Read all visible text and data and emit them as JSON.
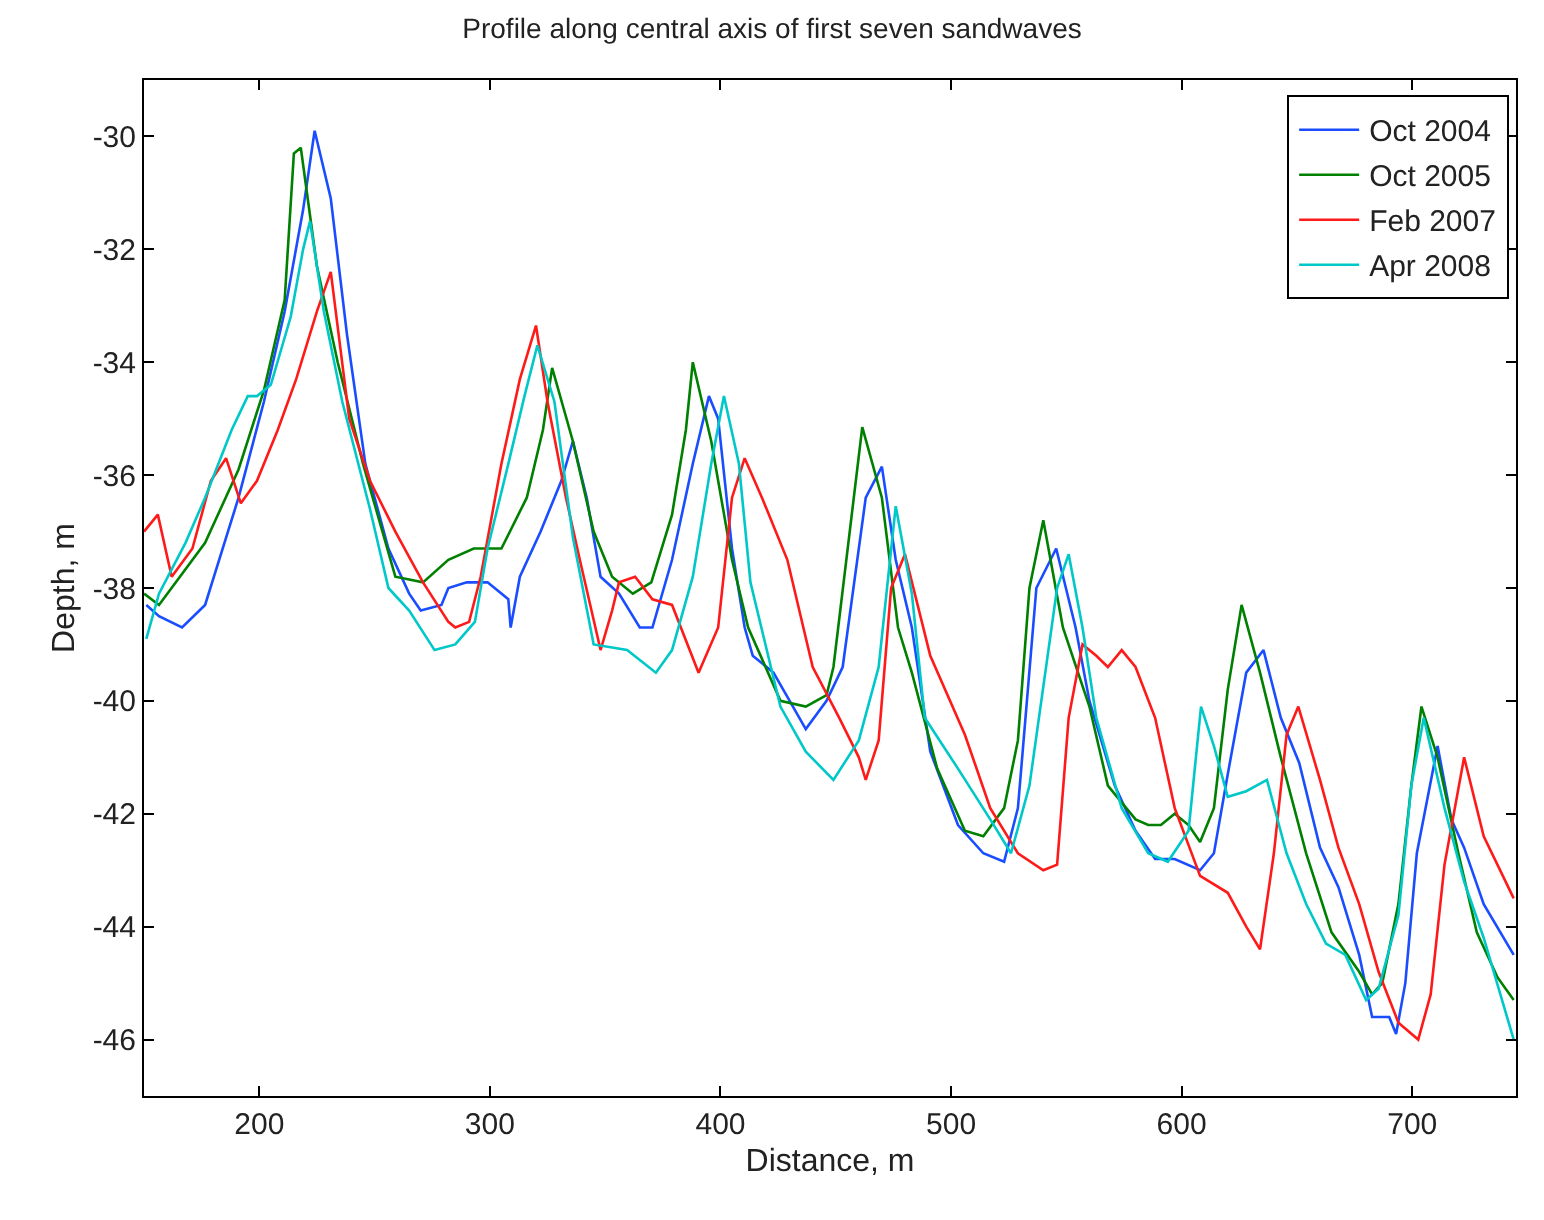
{
  "chart_data": {
    "type": "line",
    "title": "Profile along central axis of first seven sandwaves",
    "xlabel": "Distance, m",
    "ylabel": "Depth, m",
    "xlim": [
      150,
      745
    ],
    "xticks": [
      200,
      300,
      400,
      500,
      600,
      700
    ],
    "ylim": [
      -47,
      -29
    ],
    "yticks": [
      -46,
      -44,
      -42,
      -40,
      -38,
      -36,
      -34,
      -32,
      -30
    ],
    "legend": "top right",
    "marker": "none",
    "line_style": "solid",
    "series": [
      {
        "name": "Oct 2004",
        "color": "#1a4dff",
        "x": [
          151,
          156.5,
          166.5,
          176.5,
          191,
          202,
          211,
          219,
          224,
          231,
          238,
          246,
          256,
          265,
          270,
          279,
          282,
          290,
          299,
          308,
          309,
          313,
          322,
          331,
          336,
          342,
          348,
          356,
          365,
          370.5,
          379,
          388,
          395,
          399,
          405,
          410.5,
          414,
          423,
          437,
          446,
          453,
          463,
          470,
          476,
          483,
          491,
          503,
          514,
          523,
          529,
          537,
          545.6,
          554,
          560,
          571,
          580,
          588.5,
          597,
          608,
          614,
          620,
          628,
          635.5,
          643,
          651,
          660,
          668,
          677,
          682.6,
          690,
          693,
          697,
          702,
          711,
          717,
          722.5,
          731,
          744
        ],
        "values": [
          -38.3,
          -38.5,
          -38.7,
          -38.3,
          -36.4,
          -34.7,
          -33.1,
          -31.3,
          -29.9,
          -31.1,
          -33.5,
          -35.8,
          -37.3,
          -38.1,
          -38.4,
          -38.3,
          -38.0,
          -37.9,
          -37.9,
          -38.2,
          -38.7,
          -37.8,
          -37.0,
          -36.1,
          -35.4,
          -36.4,
          -37.8,
          -38.1,
          -38.7,
          -38.7,
          -37.5,
          -35.8,
          -34.6,
          -35.0,
          -37.3,
          -38.7,
          -39.2,
          -39.5,
          -40.5,
          -40.0,
          -39.4,
          -36.4,
          -35.85,
          -37.5,
          -38.7,
          -40.9,
          -42.2,
          -42.7,
          -42.85,
          -41.9,
          -38.0,
          -37.3,
          -38.7,
          -40.0,
          -41.5,
          -42.3,
          -42.8,
          -42.8,
          -43.0,
          -42.7,
          -41.3,
          -39.5,
          -39.1,
          -40.3,
          -41.1,
          -42.6,
          -43.3,
          -44.5,
          -45.6,
          -45.6,
          -45.9,
          -45.0,
          -42.7,
          -40.8,
          -42.1,
          -42.6,
          -43.6,
          -44.5
        ]
      },
      {
        "name": "Oct 2005",
        "color": "#008000",
        "x": [
          150,
          156.5,
          176.5,
          191,
          202,
          211,
          215,
          218,
          225,
          234,
          245,
          259,
          271,
          282,
          293,
          305,
          316,
          323,
          327,
          336,
          345,
          353,
          362,
          370,
          379,
          385,
          388,
          396,
          405,
          412,
          426,
          437,
          446,
          449,
          461.5,
          470,
          477,
          483,
          494,
          506,
          514,
          523,
          529,
          534,
          540,
          548.5,
          560,
          568,
          580,
          585.5,
          591,
          597,
          603,
          608,
          614,
          620,
          626,
          634,
          643,
          654,
          665,
          677,
          682.6,
          687,
          694,
          699.6,
          704,
          711,
          720,
          728,
          737,
          744
        ],
        "values": [
          -38.1,
          -38.3,
          -37.2,
          -35.9,
          -34.5,
          -32.9,
          -30.3,
          -30.2,
          -32.3,
          -34.0,
          -35.8,
          -37.8,
          -37.9,
          -37.5,
          -37.3,
          -37.3,
          -36.4,
          -35.2,
          -34.1,
          -35.4,
          -37.0,
          -37.8,
          -38.1,
          -37.9,
          -36.7,
          -35.2,
          -34.0,
          -35.4,
          -37.5,
          -38.7,
          -40.0,
          -40.1,
          -39.9,
          -39.4,
          -35.15,
          -36.4,
          -38.7,
          -39.5,
          -41.2,
          -42.3,
          -42.4,
          -41.9,
          -40.7,
          -38.0,
          -36.8,
          -38.7,
          -40.1,
          -41.5,
          -42.1,
          -42.2,
          -42.2,
          -42.0,
          -42.2,
          -42.5,
          -41.9,
          -39.8,
          -38.3,
          -39.5,
          -41.0,
          -42.7,
          -44.1,
          -44.8,
          -45.2,
          -45.0,
          -43.6,
          -41.5,
          -40.1,
          -41.0,
          -42.7,
          -44.1,
          -44.9,
          -45.3
        ]
      },
      {
        "name": "Feb 2007",
        "color": "#ff1a1a",
        "x": [
          150,
          156,
          162,
          171,
          179,
          185.6,
          192,
          199,
          208,
          216,
          225,
          231,
          239,
          248,
          259,
          271,
          282,
          285,
          291,
          296,
          305,
          313,
          320,
          325,
          333,
          339,
          348,
          353,
          356,
          363,
          370.5,
          379,
          390.5,
          399,
          405,
          410.5,
          418,
          429,
          440,
          451.5,
          460,
          463,
          468.6,
          474,
          480,
          491,
          506,
          517,
          529,
          540,
          546,
          551,
          557,
          563,
          568,
          574,
          580,
          588.5,
          597,
          608,
          620,
          628,
          634,
          640,
          645.5,
          650.6,
          660,
          668,
          677,
          685.4,
          694,
          702.6,
          708,
          714,
          722.5,
          731,
          744
        ],
        "values": [
          -37.0,
          -36.7,
          -37.8,
          -37.3,
          -36.1,
          -35.7,
          -36.5,
          -36.1,
          -35.2,
          -34.3,
          -33.1,
          -32.4,
          -35.0,
          -36.1,
          -37.0,
          -37.9,
          -38.6,
          -38.7,
          -38.6,
          -37.8,
          -35.8,
          -34.3,
          -33.35,
          -34.7,
          -36.4,
          -37.5,
          -39.1,
          -38.4,
          -37.9,
          -37.8,
          -38.2,
          -38.3,
          -39.5,
          -38.7,
          -36.4,
          -35.7,
          -36.4,
          -37.5,
          -39.4,
          -40.3,
          -41.0,
          -41.4,
          -40.7,
          -38.0,
          -37.4,
          -39.2,
          -40.6,
          -41.9,
          -42.7,
          -43.0,
          -42.9,
          -40.3,
          -39.0,
          -39.2,
          -39.4,
          -39.1,
          -39.4,
          -40.3,
          -41.9,
          -43.1,
          -43.4,
          -44.0,
          -44.4,
          -42.7,
          -40.6,
          -40.1,
          -41.4,
          -42.6,
          -43.6,
          -44.8,
          -45.7,
          -46.0,
          -45.2,
          -42.9,
          -41.0,
          -42.4,
          -43.5
        ]
      },
      {
        "name": "Apr 2008",
        "color": "#00c8c8",
        "x": [
          151,
          156.5,
          168,
          176.5,
          188,
          195,
          199,
          205,
          213.6,
          219,
          222,
          228,
          236,
          248,
          256,
          265,
          276,
          285,
          293.5,
          299,
          308,
          315,
          320.6,
          328,
          336,
          345,
          359.5,
          372,
          379,
          388,
          396,
          401.5,
          408,
          413,
          426,
          437,
          449,
          460,
          468.6,
          476,
          483,
          488.6,
          503,
          517,
          526,
          534,
          546,
          551,
          557,
          563,
          574,
          585.5,
          594,
          603,
          608.4,
          614,
          620,
          628,
          637,
          645.5,
          654,
          662.6,
          671,
          680,
          685.4,
          694,
          699.6,
          705,
          714,
          722.5,
          731,
          744
        ],
        "values": [
          -38.9,
          -38.1,
          -37.2,
          -36.4,
          -35.2,
          -34.6,
          -34.6,
          -34.4,
          -33.2,
          -32.0,
          -31.5,
          -33.1,
          -34.7,
          -36.6,
          -38.0,
          -38.4,
          -39.1,
          -39.0,
          -38.6,
          -37.3,
          -35.8,
          -34.6,
          -33.7,
          -34.7,
          -37.1,
          -39.0,
          -39.1,
          -39.5,
          -39.1,
          -37.8,
          -35.8,
          -34.6,
          -35.8,
          -37.9,
          -40.1,
          -40.9,
          -41.4,
          -40.7,
          -39.4,
          -36.55,
          -38.1,
          -40.3,
          -41.2,
          -42.1,
          -42.7,
          -41.5,
          -38.0,
          -37.4,
          -38.7,
          -40.3,
          -41.9,
          -42.7,
          -42.85,
          -42.3,
          -40.1,
          -40.8,
          -41.7,
          -41.6,
          -41.4,
          -42.7,
          -43.6,
          -44.3,
          -44.5,
          -45.3,
          -45.1,
          -43.8,
          -41.5,
          -40.3,
          -41.9,
          -43.2,
          -44.2,
          -46.0
        ]
      }
    ]
  }
}
